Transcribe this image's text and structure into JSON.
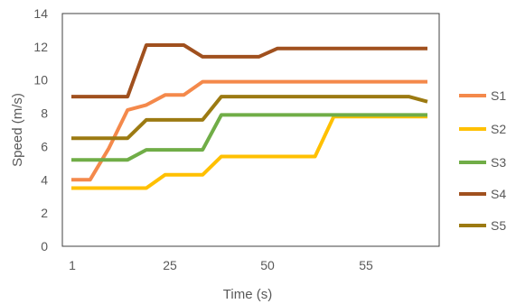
{
  "chart_data": {
    "type": "line",
    "title": "",
    "xlabel": "Time (s)",
    "ylabel": "Speed (m/s)",
    "ylim": [
      0,
      14
    ],
    "y_ticks": [
      "0",
      "2",
      "4",
      "6",
      "8",
      "10",
      "12",
      "14"
    ],
    "x_tick_labels": [
      "1",
      "25",
      "50",
      "55"
    ],
    "grid": "none",
    "legend_position": "right",
    "x": [
      0,
      1,
      2,
      3,
      4,
      5,
      6,
      7,
      8,
      9,
      10,
      11,
      12,
      13,
      14,
      15,
      16,
      17,
      18,
      19
    ],
    "series": [
      {
        "name": "S1",
        "color": "#F4894B",
        "values": [
          4.0,
          4.0,
          5.9,
          8.2,
          8.5,
          9.1,
          9.1,
          9.9,
          9.9,
          9.9,
          9.9,
          9.9,
          9.9,
          9.9,
          9.9,
          9.9,
          9.9,
          9.9,
          9.9,
          9.9
        ]
      },
      {
        "name": "S2",
        "color": "#FFC000",
        "values": [
          3.5,
          3.5,
          3.5,
          3.5,
          3.5,
          4.3,
          4.3,
          4.3,
          5.4,
          5.4,
          5.4,
          5.4,
          5.4,
          5.4,
          7.8,
          7.8,
          7.8,
          7.8,
          7.8,
          7.8
        ]
      },
      {
        "name": "S3",
        "color": "#70AD47",
        "values": [
          5.2,
          5.2,
          5.2,
          5.2,
          5.8,
          5.8,
          5.8,
          5.8,
          7.9,
          7.9,
          7.9,
          7.9,
          7.9,
          7.9,
          7.9,
          7.9,
          7.9,
          7.9,
          7.9,
          7.9
        ]
      },
      {
        "name": "S4",
        "color": "#A0501E",
        "values": [
          9.0,
          9.0,
          9.0,
          9.0,
          12.1,
          12.1,
          12.1,
          11.4,
          11.4,
          11.4,
          11.4,
          11.9,
          11.9,
          11.9,
          11.9,
          11.9,
          11.9,
          11.9,
          11.9,
          11.9
        ]
      },
      {
        "name": "S5",
        "color": "#9C7A12",
        "values": [
          6.5,
          6.5,
          6.5,
          6.5,
          7.6,
          7.6,
          7.6,
          7.6,
          9.0,
          9.0,
          9.0,
          9.0,
          9.0,
          9.0,
          9.0,
          9.0,
          9.0,
          9.0,
          9.0,
          8.7
        ]
      }
    ]
  }
}
